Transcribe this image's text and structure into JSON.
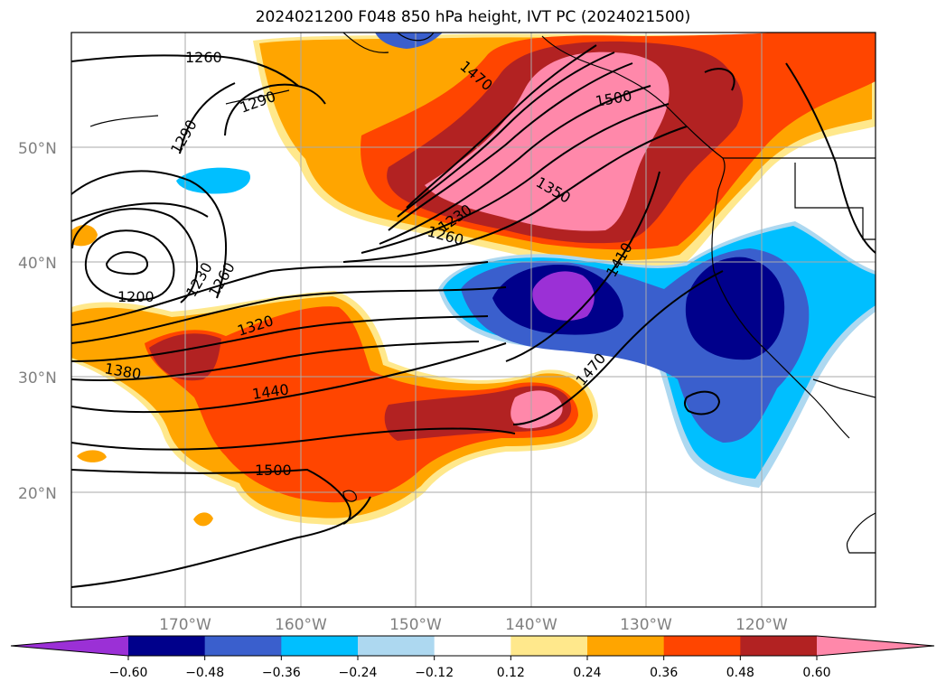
{
  "title": "2024021200 F048 850 hPa height, IVT PC (2024021500)",
  "lat_labels": [
    "50°N",
    "40°N",
    "30°N",
    "20°N"
  ],
  "lon_labels": [
    "170°W",
    "160°W",
    "150°W",
    "140°W",
    "130°W",
    "120°W"
  ],
  "colorbar": {
    "colors": [
      "#9b30d6",
      "#00008b",
      "#3a5fcd",
      "#00bfff",
      "#add8f0",
      "#ffffff",
      "#ffe88c",
      "#ffa500",
      "#ff4500",
      "#b22222",
      "#ff88aa"
    ],
    "tick_labels": [
      "−0.60",
      "−0.48",
      "−0.36",
      "−0.24",
      "−0.12",
      "0.12",
      "0.24",
      "0.36",
      "0.48",
      "0.60"
    ]
  },
  "contour_labels": [
    "1260",
    "1290",
    "1290",
    "1470",
    "1500",
    "1350",
    "1230",
    "1260",
    "1410",
    "1230",
    "1260",
    "1200",
    "1320",
    "1380",
    "1440",
    "1470",
    "1500"
  ]
}
